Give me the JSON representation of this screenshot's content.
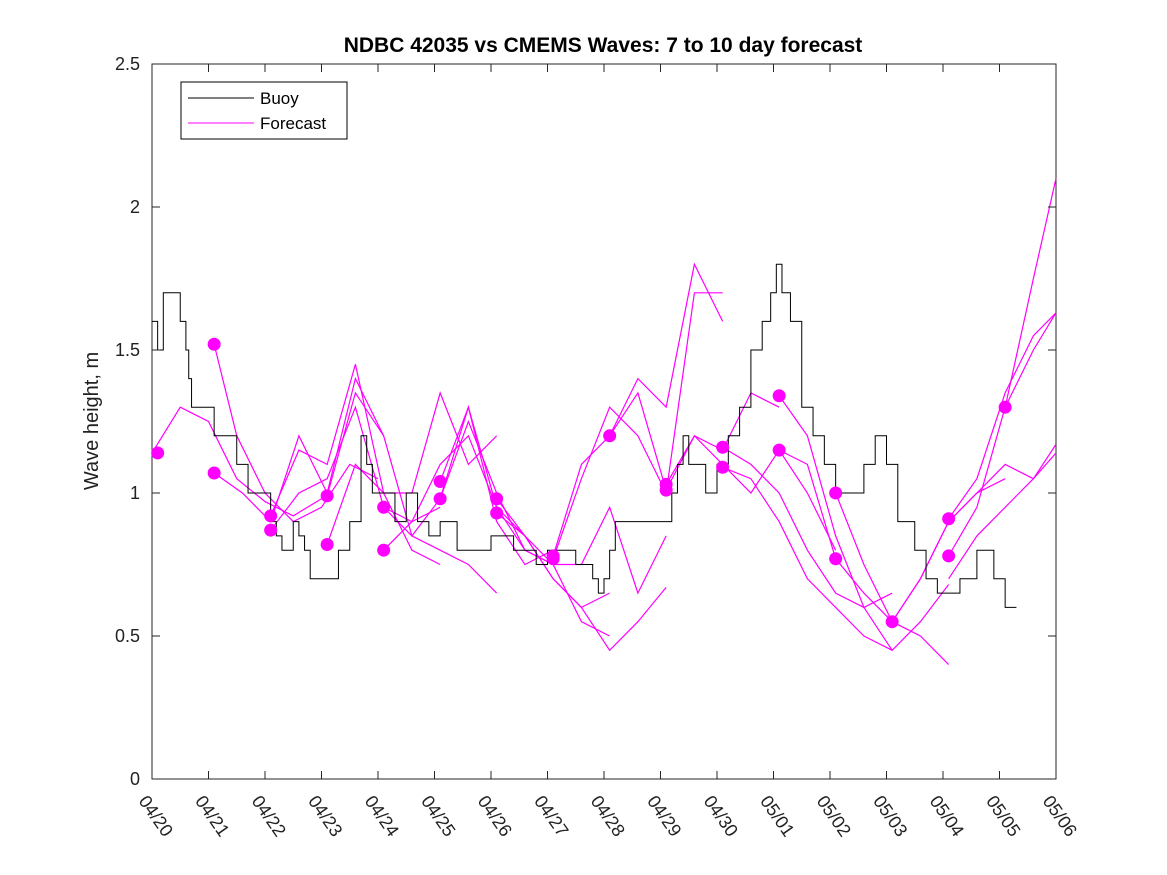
{
  "chart_data": {
    "type": "line",
    "title": "NDBC 42035 vs CMEMS Waves: 7 to 10 day forecast",
    "xlabel": "",
    "ylabel": "Wave height, m",
    "x_type": "date",
    "xlim": [
      "04/20",
      "05/06"
    ],
    "ylim": [
      0,
      2.5
    ],
    "x_ticks": [
      "04/20",
      "04/21",
      "04/22",
      "04/23",
      "04/24",
      "04/25",
      "04/26",
      "04/27",
      "04/28",
      "04/29",
      "04/30",
      "05/01",
      "05/02",
      "05/03",
      "05/04",
      "05/05",
      "05/06"
    ],
    "y_ticks": [
      "0",
      "0.5",
      "1",
      "1.5",
      "2",
      "2.5"
    ],
    "grid": false,
    "legend": {
      "position": "top-left",
      "entries": [
        "Buoy",
        "Forecast"
      ]
    },
    "colors": {
      "buoy": "#000000",
      "forecast": "#ff00ff"
    },
    "buoy": {
      "name": "Buoy",
      "x": [
        0,
        0.1,
        0.2,
        0.3,
        0.5,
        0.6,
        0.65,
        0.7,
        0.8,
        1.0,
        1.1,
        1.3,
        1.5,
        1.7,
        1.9,
        2.1,
        2.2,
        2.3,
        2.4,
        2.5,
        2.6,
        2.7,
        2.8,
        2.9,
        3.0,
        3.1,
        3.3,
        3.5,
        3.7,
        3.8,
        3.9,
        4.0,
        4.3,
        4.5,
        4.7,
        4.9,
        5.1,
        5.4,
        5.7,
        6.0,
        6.4,
        6.8,
        7.0,
        7.1,
        7.5,
        7.8,
        7.9,
        8.0,
        8.1,
        8.2,
        8.5,
        8.9,
        9.2,
        9.3,
        9.4,
        9.5,
        9.8,
        10.0,
        10.2,
        10.4,
        10.6,
        10.8,
        10.95,
        11.05,
        11.15,
        11.3,
        11.5,
        11.7,
        11.9,
        12.1,
        12.3,
        12.6,
        12.8,
        13.0,
        13.2,
        13.5,
        13.7,
        13.9,
        14.1,
        14.3,
        14.6,
        14.8,
        14.9,
        15.1,
        15.3
      ],
      "y": [
        1.6,
        1.5,
        1.7,
        1.7,
        1.6,
        1.5,
        1.4,
        1.3,
        1.3,
        1.3,
        1.2,
        1.2,
        1.1,
        1.0,
        1.0,
        0.9,
        0.85,
        0.8,
        0.8,
        0.9,
        0.85,
        0.8,
        0.7,
        0.7,
        0.7,
        0.7,
        0.8,
        0.9,
        1.2,
        1.1,
        1.0,
        1.0,
        0.9,
        1.0,
        0.9,
        0.85,
        0.9,
        0.8,
        0.8,
        0.85,
        0.8,
        0.75,
        0.8,
        0.8,
        0.75,
        0.7,
        0.65,
        0.7,
        0.8,
        0.9,
        0.9,
        0.9,
        1.0,
        1.1,
        1.2,
        1.1,
        1.0,
        1.1,
        1.2,
        1.3,
        1.5,
        1.6,
        1.7,
        1.8,
        1.7,
        1.6,
        1.3,
        1.2,
        1.1,
        1.0,
        1.0,
        1.1,
        1.2,
        1.1,
        0.9,
        0.8,
        0.7,
        0.65,
        0.65,
        0.7,
        0.8,
        0.8,
        0.7,
        0.6,
        0.6
      ]
    },
    "forecast_series": [
      {
        "x": [
          0,
          0.5,
          1.0,
          1.5,
          2.0,
          2.5,
          3.0
        ],
        "y": [
          1.14,
          1.3,
          1.25,
          1.05,
          0.97,
          0.92,
          0.98
        ]
      },
      {
        "x": [
          1.1,
          1.5,
          2.0,
          2.5,
          3.0,
          3.5,
          4.0
        ],
        "y": [
          1.52,
          1.2,
          1.0,
          0.9,
          0.95,
          1.1,
          1.05
        ]
      },
      {
        "x": [
          1.1,
          1.6,
          2.1,
          2.6,
          3.1,
          3.6,
          4.1
        ],
        "y": [
          1.07,
          1.0,
          0.9,
          1.2,
          1.0,
          1.4,
          1.2
        ]
      },
      {
        "x": [
          2.1,
          2.6,
          3.1,
          3.6,
          4.1,
          4.6,
          5.1
        ],
        "y": [
          0.92,
          1.15,
          1.1,
          1.45,
          1.0,
          0.8,
          0.75
        ]
      },
      {
        "x": [
          2.1,
          2.6,
          3.1,
          3.6,
          4.1,
          4.6,
          5.1
        ],
        "y": [
          0.87,
          1.0,
          1.05,
          1.3,
          0.95,
          0.9,
          0.95
        ]
      },
      {
        "x": [
          3.1,
          3.6,
          4.1,
          4.6,
          5.1,
          5.6,
          6.1
        ],
        "y": [
          0.99,
          1.35,
          1.2,
          0.85,
          0.8,
          0.75,
          0.65
        ]
      },
      {
        "x": [
          3.1,
          3.6,
          4.1,
          4.6,
          5.1,
          5.6,
          6.1
        ],
        "y": [
          0.82,
          1.1,
          1.0,
          1.0,
          1.35,
          1.1,
          1.2
        ]
      },
      {
        "x": [
          4.1,
          4.6,
          5.1,
          5.6,
          6.1,
          6.6,
          7.1
        ],
        "y": [
          0.95,
          0.85,
          0.98,
          1.3,
          0.9,
          0.75,
          0.8
        ]
      },
      {
        "x": [
          4.1,
          4.6,
          5.1,
          5.6,
          6.1,
          6.6,
          7.1
        ],
        "y": [
          0.8,
          0.9,
          1.1,
          1.2,
          0.95,
          0.8,
          0.75
        ]
      },
      {
        "x": [
          5.1,
          5.6,
          6.1,
          6.6,
          7.1,
          7.6,
          8.1
        ],
        "y": [
          1.04,
          1.3,
          0.95,
          0.85,
          0.7,
          0.6,
          0.65
        ]
      },
      {
        "x": [
          5.1,
          5.6,
          6.1,
          6.6,
          7.1,
          7.6,
          8.1
        ],
        "y": [
          0.98,
          1.25,
          1.0,
          0.8,
          0.75,
          0.55,
          0.5
        ]
      },
      {
        "x": [
          6.1,
          6.6,
          7.1,
          7.6,
          8.1,
          8.6,
          9.1
        ],
        "y": [
          0.98,
          0.85,
          0.7,
          0.6,
          0.45,
          0.55,
          0.67
        ]
      },
      {
        "x": [
          6.1,
          6.6,
          7.1,
          7.6,
          8.1,
          8.6,
          9.1
        ],
        "y": [
          0.93,
          0.85,
          0.75,
          0.75,
          0.95,
          0.65,
          0.85
        ]
      },
      {
        "x": [
          7.1,
          7.6,
          8.1,
          8.6,
          9.1,
          9.6,
          10.1
        ],
        "y": [
          0.78,
          1.1,
          1.2,
          1.4,
          1.3,
          1.8,
          1.6
        ]
      },
      {
        "x": [
          7.1,
          7.6,
          8.1,
          8.6,
          9.1,
          9.6,
          10.1
        ],
        "y": [
          0.77,
          1.05,
          1.3,
          1.2,
          1.0,
          1.7,
          1.7
        ]
      },
      {
        "x": [
          8.1,
          8.6,
          9.1,
          9.6,
          10.1,
          10.6,
          11.1
        ],
        "y": [
          1.2,
          1.35,
          1.01,
          1.2,
          1.15,
          1.35,
          1.3
        ]
      },
      {
        "x": [
          9.1,
          9.6,
          10.1,
          10.6,
          11.1,
          11.6,
          12.1
        ],
        "y": [
          1.03,
          1.2,
          1.1,
          1.0,
          1.15,
          1.0,
          0.8
        ]
      },
      {
        "x": [
          10.1,
          10.6,
          11.1,
          11.6,
          12.1,
          12.6,
          13.1
        ],
        "y": [
          1.16,
          1.1,
          1.0,
          0.8,
          0.65,
          0.6,
          0.65
        ]
      },
      {
        "x": [
          10.1,
          10.6,
          11.1,
          11.6,
          12.1,
          12.6,
          13.1
        ],
        "y": [
          1.09,
          1.05,
          0.9,
          0.7,
          0.6,
          0.5,
          0.45
        ]
      },
      {
        "x": [
          11.1,
          11.6,
          12.1,
          12.6,
          13.1,
          13.6,
          14.1
        ],
        "y": [
          1.34,
          1.2,
          0.85,
          0.6,
          0.45,
          0.55,
          0.68
        ]
      },
      {
        "x": [
          11.1,
          11.6,
          12.1,
          12.6,
          13.1,
          13.6,
          14.1
        ],
        "y": [
          1.15,
          1.1,
          0.77,
          0.65,
          0.55,
          0.5,
          0.4
        ]
      },
      {
        "x": [
          12.1,
          12.6,
          13.1,
          13.6,
          14.1,
          14.6,
          15.1
        ],
        "y": [
          1.0,
          0.75,
          0.55,
          0.7,
          0.9,
          1.0,
          1.05
        ]
      },
      {
        "x": [
          13.1,
          13.6,
          14.1,
          14.6,
          15.1,
          15.6,
          16.0
        ],
        "y": [
          0.55,
          0.7,
          0.9,
          1.0,
          1.1,
          1.05,
          1.14
        ]
      },
      {
        "x": [
          14.1,
          14.6,
          15.1,
          15.6,
          16.0
        ],
        "y": [
          0.91,
          1.05,
          1.35,
          1.55,
          1.63
        ]
      },
      {
        "x": [
          14.1,
          14.6,
          15.1,
          15.6,
          16.0
        ],
        "y": [
          0.78,
          0.95,
          1.3,
          1.75,
          2.1
        ]
      },
      {
        "x": [
          15.1,
          15.6,
          16.0
        ],
        "y": [
          1.3,
          1.5,
          1.63
        ]
      },
      {
        "x": [
          14.1,
          14.6,
          15.1,
          15.6,
          16.0
        ],
        "y": [
          0.7,
          0.85,
          0.95,
          1.05,
          1.17
        ]
      }
    ],
    "forecast_initial_points": [
      {
        "x": 0.1,
        "y": 1.14
      },
      {
        "x": 1.1,
        "y": 1.52
      },
      {
        "x": 1.1,
        "y": 1.07
      },
      {
        "x": 2.1,
        "y": 0.92
      },
      {
        "x": 2.1,
        "y": 0.87
      },
      {
        "x": 3.1,
        "y": 0.99
      },
      {
        "x": 3.1,
        "y": 0.82
      },
      {
        "x": 4.1,
        "y": 0.95
      },
      {
        "x": 4.1,
        "y": 0.8
      },
      {
        "x": 5.1,
        "y": 1.04
      },
      {
        "x": 5.1,
        "y": 0.98
      },
      {
        "x": 6.1,
        "y": 0.98
      },
      {
        "x": 6.1,
        "y": 0.93
      },
      {
        "x": 7.1,
        "y": 0.78
      },
      {
        "x": 7.1,
        "y": 0.77
      },
      {
        "x": 8.1,
        "y": 1.2
      },
      {
        "x": 9.1,
        "y": 1.03
      },
      {
        "x": 9.1,
        "y": 1.01
      },
      {
        "x": 10.1,
        "y": 1.16
      },
      {
        "x": 10.1,
        "y": 1.09
      },
      {
        "x": 11.1,
        "y": 1.34
      },
      {
        "x": 11.1,
        "y": 1.15
      },
      {
        "x": 12.1,
        "y": 1.0
      },
      {
        "x": 12.1,
        "y": 0.77
      },
      {
        "x": 13.1,
        "y": 0.55
      },
      {
        "x": 14.1,
        "y": 0.91
      },
      {
        "x": 14.1,
        "y": 0.78
      },
      {
        "x": 15.1,
        "y": 1.3
      }
    ]
  }
}
